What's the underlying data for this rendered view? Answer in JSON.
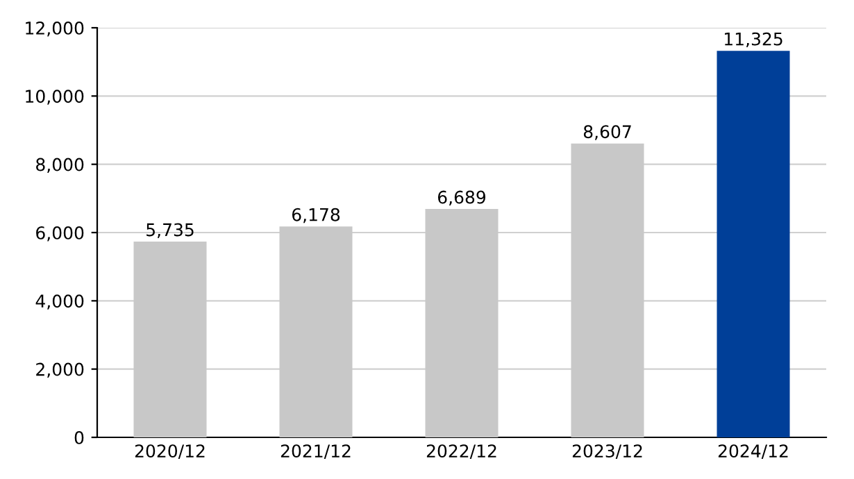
{
  "chart_data": {
    "type": "bar",
    "categories": [
      "2020/12",
      "2021/12",
      "2022/12",
      "2023/12",
      "2024/12"
    ],
    "values": [
      5735,
      6178,
      6689,
      8607,
      11325
    ],
    "colors": [
      "#c8c8c8",
      "#c8c8c8",
      "#c8c8c8",
      "#c8c8c8",
      "#003f98"
    ],
    "value_labels": [
      "5,735",
      "6,178",
      "6,689",
      "8,607",
      "11,325"
    ],
    "ylim": [
      0,
      12000
    ],
    "yticks": [
      {
        "value": 0,
        "label": "0"
      },
      {
        "value": 2000,
        "label": "2,000"
      },
      {
        "value": 4000,
        "label": "4,000"
      },
      {
        "value": 6000,
        "label": "6,000"
      },
      {
        "value": 8000,
        "label": "8,000"
      },
      {
        "value": 10000,
        "label": "10,000"
      },
      {
        "value": 12000,
        "label": "12,000"
      }
    ],
    "grid": "y",
    "legend": false
  }
}
